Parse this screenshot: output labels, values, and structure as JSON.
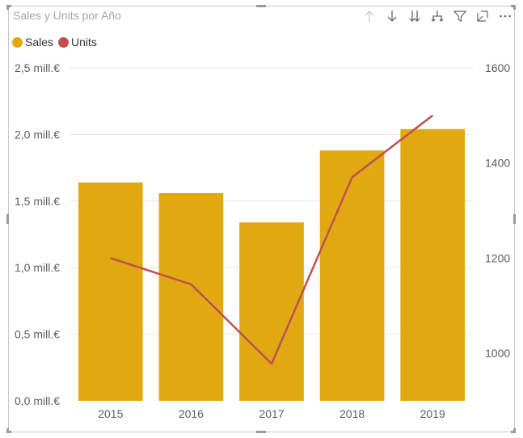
{
  "title": "Sales y Units por Año",
  "toolbar": {
    "icons": [
      "arrow-up-icon",
      "arrow-down-icon",
      "double-arrow-down-icon",
      "expand-hierarchy-icon",
      "filter-icon",
      "focus-mode-icon",
      "more-options-icon"
    ]
  },
  "colors": {
    "sales": "#E0A912",
    "units": "#C0504D",
    "grid": "#e6e6e6",
    "axis_text": "#605e5c"
  },
  "chart_data": {
    "type": "bar",
    "title": "Sales y Units por Año",
    "categories": [
      "2015",
      "2016",
      "2017",
      "2018",
      "2019"
    ],
    "series": [
      {
        "name": "Sales",
        "type": "bar",
        "axis": "left",
        "values": [
          1.64,
          1.56,
          1.34,
          1.88,
          2.04
        ]
      },
      {
        "name": "Units",
        "type": "line",
        "axis": "right",
        "values": [
          1200,
          1145,
          978,
          1370,
          1500
        ]
      }
    ],
    "y_left": {
      "ticks": [
        "0,0 mill.€",
        "0,5 mill.€",
        "1,0 mill.€",
        "1,5 mill.€",
        "2,0 mill.€",
        "2,5 mill.€"
      ],
      "tick_values": [
        0,
        0.5,
        1.0,
        1.5,
        2.0,
        2.5
      ],
      "ylim": [
        0,
        2.5
      ]
    },
    "y_right": {
      "ticks": [
        "1000",
        "1200",
        "1400",
        "1600"
      ],
      "tick_values": [
        1000,
        1200,
        1400,
        1600
      ],
      "ylim": [
        900,
        1600
      ]
    },
    "legend": [
      "Sales",
      "Units"
    ],
    "legend_position": "top-left",
    "grid": true
  }
}
